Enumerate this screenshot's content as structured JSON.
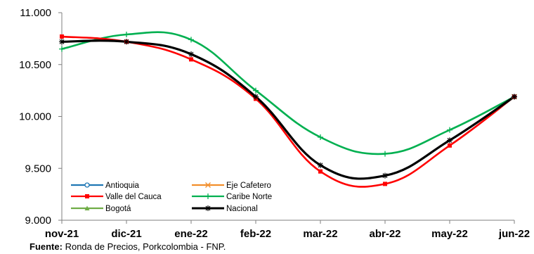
{
  "chart_data": {
    "type": "line",
    "title": "",
    "xlabel": "",
    "ylabel": "",
    "categories": [
      "nov-21",
      "dic-21",
      "ene-22",
      "feb-22",
      "mar-22",
      "abr-22",
      "may-22",
      "jun-22"
    ],
    "yticks": [
      "9.000",
      "9.500",
      "10.000",
      "10.500",
      "11.000"
    ],
    "ylim": [
      9000,
      11000
    ],
    "grid": false,
    "legend": "bottom-left",
    "series": [
      {
        "name": "Antioquia",
        "color": "#1f77b4",
        "marker": "circle-open",
        "values": [
          null,
          null,
          null,
          null,
          null,
          null,
          null,
          10190
        ]
      },
      {
        "name": "Eje Cafetero",
        "color": "#f28e2b",
        "marker": "x",
        "values": [
          null,
          null,
          null,
          null,
          null,
          null,
          null,
          10190
        ]
      },
      {
        "name": "Valle del Cauca",
        "color": "#ff0000",
        "marker": "square",
        "values": [
          10770,
          10720,
          10550,
          10170,
          9470,
          9350,
          9720,
          10190
        ]
      },
      {
        "name": "Caribe Norte",
        "color": "#00b050",
        "marker": "plus",
        "values": [
          10650,
          10790,
          10740,
          10250,
          9800,
          9640,
          9870,
          10190
        ]
      },
      {
        "name": "Bogotá",
        "color": "#70ad47",
        "marker": "triangle",
        "values": [
          null,
          null,
          null,
          null,
          null,
          null,
          null,
          10190
        ]
      },
      {
        "name": "Nacional",
        "color": "#000000",
        "marker": "star",
        "values": [
          10720,
          10720,
          10600,
          10190,
          9530,
          9430,
          9770,
          10190
        ]
      }
    ]
  },
  "footnote": {
    "label": "Fuente:",
    "text": "Ronda de Precios, Porkcolombia  - FNP."
  }
}
